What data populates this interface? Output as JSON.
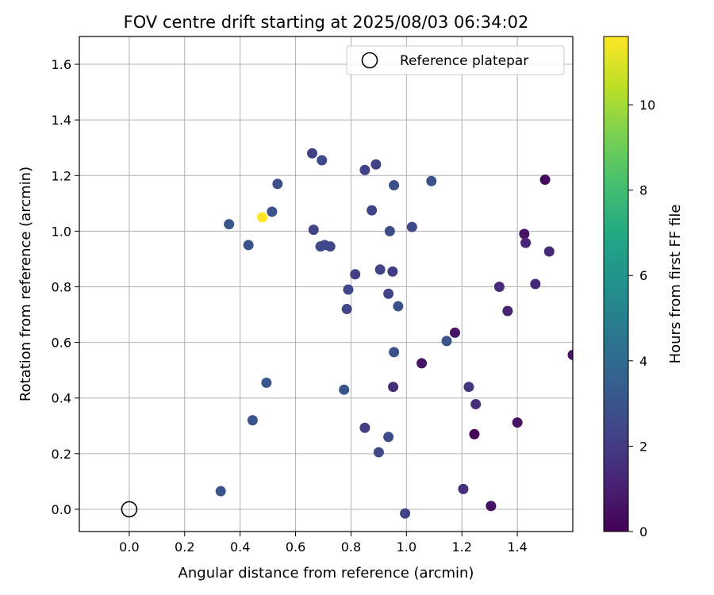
{
  "chart_data": {
    "type": "scatter",
    "title": "FOV centre drift starting at 2025/08/03 06:34:02",
    "xlabel": "Angular distance from reference (arcmin)",
    "ylabel": "Rotation from reference (arcmin)",
    "xlim": [
      -0.18,
      1.6
    ],
    "ylim": [
      -0.08,
      1.7
    ],
    "xticks": [
      0.0,
      0.2,
      0.4,
      0.6,
      0.8,
      1.0,
      1.2,
      1.4
    ],
    "xtick_labels": [
      "0.0",
      "0.2",
      "0.4",
      "0.6",
      "0.8",
      "1.0",
      "1.2",
      "1.4"
    ],
    "yticks": [
      0.0,
      0.2,
      0.4,
      0.6,
      0.8,
      1.0,
      1.2,
      1.4,
      1.6
    ],
    "ytick_labels": [
      "0.0",
      "0.2",
      "0.4",
      "0.6",
      "0.8",
      "1.0",
      "1.2",
      "1.4",
      "1.6"
    ],
    "grid": true,
    "colormap": "viridis",
    "colorbar": {
      "label": "Hours from first FF file",
      "range": [
        0,
        11.6
      ],
      "ticks": [
        0,
        2,
        4,
        6,
        8,
        10
      ],
      "tick_labels": [
        "0",
        "2",
        "4",
        "6",
        "8",
        "10"
      ]
    },
    "legend": {
      "placement": "top-right",
      "entries": [
        {
          "label": "Reference platepar",
          "marker": "open-circle"
        }
      ]
    },
    "reference_point": {
      "x": 0.0,
      "y": 0.0
    },
    "points": [
      {
        "x": 0.33,
        "y": 0.065,
        "c": 3.0
      },
      {
        "x": 0.36,
        "y": 1.025,
        "c": 3.1
      },
      {
        "x": 0.43,
        "y": 0.95,
        "c": 3.0
      },
      {
        "x": 0.445,
        "y": 0.32,
        "c": 3.0
      },
      {
        "x": 0.48,
        "y": 1.05,
        "c": 11.6
      },
      {
        "x": 0.495,
        "y": 0.455,
        "c": 3.1
      },
      {
        "x": 0.515,
        "y": 1.07,
        "c": 2.9
      },
      {
        "x": 0.535,
        "y": 1.17,
        "c": 2.8
      },
      {
        "x": 0.66,
        "y": 1.28,
        "c": 2.2
      },
      {
        "x": 0.665,
        "y": 1.005,
        "c": 2.3
      },
      {
        "x": 0.69,
        "y": 0.945,
        "c": 2.6
      },
      {
        "x": 0.695,
        "y": 1.255,
        "c": 2.5
      },
      {
        "x": 0.705,
        "y": 0.95,
        "c": 2.5
      },
      {
        "x": 0.725,
        "y": 0.945,
        "c": 2.4
      },
      {
        "x": 0.775,
        "y": 0.43,
        "c": 3.0
      },
      {
        "x": 0.785,
        "y": 0.72,
        "c": 2.4
      },
      {
        "x": 0.79,
        "y": 0.79,
        "c": 2.5
      },
      {
        "x": 0.815,
        "y": 0.845,
        "c": 2.2
      },
      {
        "x": 0.85,
        "y": 1.22,
        "c": 2.3
      },
      {
        "x": 0.85,
        "y": 0.293,
        "c": 2.1
      },
      {
        "x": 0.875,
        "y": 1.075,
        "c": 2.3
      },
      {
        "x": 0.89,
        "y": 1.24,
        "c": 2.2
      },
      {
        "x": 0.9,
        "y": 0.205,
        "c": 2.6
      },
      {
        "x": 0.905,
        "y": 0.862,
        "c": 2.3
      },
      {
        "x": 0.935,
        "y": 0.775,
        "c": 2.3
      },
      {
        "x": 0.935,
        "y": 0.26,
        "c": 2.6
      },
      {
        "x": 0.94,
        "y": 1.0,
        "c": 2.7
      },
      {
        "x": 0.95,
        "y": 0.855,
        "c": 2.1
      },
      {
        "x": 0.952,
        "y": 0.44,
        "c": 1.5
      },
      {
        "x": 0.955,
        "y": 0.565,
        "c": 2.9
      },
      {
        "x": 0.955,
        "y": 1.165,
        "c": 2.8
      },
      {
        "x": 0.97,
        "y": 0.73,
        "c": 2.9
      },
      {
        "x": 0.995,
        "y": -0.015,
        "c": 2.3
      },
      {
        "x": 1.02,
        "y": 1.015,
        "c": 2.5
      },
      {
        "x": 1.055,
        "y": 0.525,
        "c": 0.6
      },
      {
        "x": 1.09,
        "y": 1.18,
        "c": 2.9
      },
      {
        "x": 1.145,
        "y": 0.605,
        "c": 3.0
      },
      {
        "x": 1.175,
        "y": 0.635,
        "c": 0.6
      },
      {
        "x": 1.205,
        "y": 0.073,
        "c": 1.6
      },
      {
        "x": 1.225,
        "y": 0.44,
        "c": 1.8
      },
      {
        "x": 1.245,
        "y": 0.27,
        "c": 0.1
      },
      {
        "x": 1.25,
        "y": 0.378,
        "c": 1.5
      },
      {
        "x": 1.305,
        "y": 0.012,
        "c": 0.5
      },
      {
        "x": 1.335,
        "y": 0.8,
        "c": 1.4
      },
      {
        "x": 1.365,
        "y": 0.713,
        "c": 1.1
      },
      {
        "x": 1.4,
        "y": 0.312,
        "c": 0.6
      },
      {
        "x": 1.425,
        "y": 0.99,
        "c": 0.6
      },
      {
        "x": 1.43,
        "y": 0.958,
        "c": 1.2
      },
      {
        "x": 1.465,
        "y": 0.81,
        "c": 1.3
      },
      {
        "x": 1.5,
        "y": 1.185,
        "c": 0.3
      },
      {
        "x": 1.515,
        "y": 0.927,
        "c": 1.3
      },
      {
        "x": 1.6,
        "y": 0.555,
        "c": 0.7
      }
    ]
  }
}
